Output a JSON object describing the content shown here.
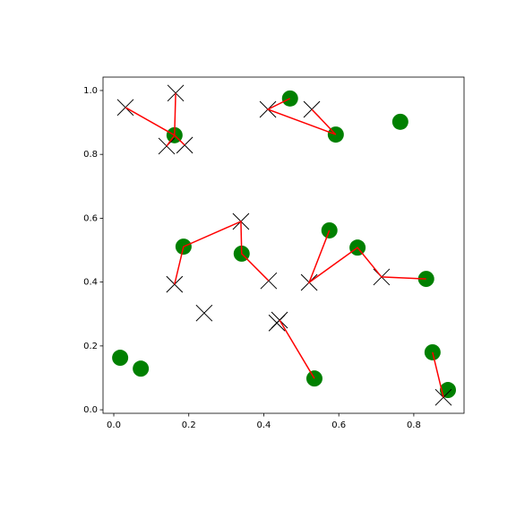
{
  "chart_data": {
    "type": "scatter",
    "xlim": [
      -0.0287,
      0.934
    ],
    "ylim": [
      -0.011,
      1.042
    ],
    "xticks": [
      {
        "value": 0,
        "label": "0.0"
      },
      {
        "value": 0.2,
        "label": "0.2"
      },
      {
        "value": 0.4,
        "label": "0.4"
      },
      {
        "value": 0.6,
        "label": "0.6"
      },
      {
        "value": 0.8,
        "label": "0.8"
      }
    ],
    "yticks": [
      {
        "value": 0,
        "label": "0.0"
      },
      {
        "value": 0.2,
        "label": "0.2"
      },
      {
        "value": 0.4,
        "label": "0.4"
      },
      {
        "value": 0.6,
        "label": "0.6"
      },
      {
        "value": 0.8,
        "label": "0.8"
      },
      {
        "value": 1,
        "label": "1.0"
      }
    ],
    "series": [
      {
        "marker": "circle",
        "color": "green",
        "x": [
          0.47,
          0.592,
          0.764,
          0.162,
          0.186,
          0.341,
          0.575,
          0.65,
          0.833,
          0.017,
          0.072,
          0.535,
          0.85,
          0.891
        ],
        "y": [
          0.975,
          0.862,
          0.902,
          0.86,
          0.511,
          0.489,
          0.562,
          0.508,
          0.41,
          0.163,
          0.129,
          0.098,
          0.18,
          0.062
        ]
      },
      {
        "marker": "x",
        "color": "black",
        "x": [
          0.031,
          0.165,
          0.141,
          0.189,
          0.411,
          0.528,
          0.339,
          0.162,
          0.413,
          0.241,
          0.442,
          0.435,
          0.521,
          0.714,
          0.879
        ],
        "y": [
          0.947,
          0.992,
          0.826,
          0.829,
          0.941,
          0.941,
          0.59,
          0.393,
          0.404,
          0.303,
          0.281,
          0.272,
          0.399,
          0.416,
          0.039
        ]
      },
      {
        "marker": "line",
        "color": "red",
        "x": [
          0.031,
          0.162,
          null,
          0.165,
          0.162,
          null,
          0.141,
          0.162,
          null,
          0.189,
          0.162,
          null,
          0.47,
          0.411,
          0.592,
          null,
          0.528,
          0.592,
          null,
          0.162,
          0.186,
          0.339,
          0.341,
          0.413,
          null,
          0.575,
          0.521,
          0.65,
          0.714,
          0.833,
          null,
          0.442,
          0.535,
          null,
          0.85,
          0.879
        ],
        "y": [
          0.947,
          0.86,
          null,
          0.992,
          0.86,
          null,
          0.826,
          0.86,
          null,
          0.829,
          0.86,
          null,
          0.975,
          0.941,
          0.862,
          null,
          0.941,
          0.862,
          null,
          0.393,
          0.511,
          0.59,
          0.489,
          0.404,
          null,
          0.562,
          0.399,
          0.508,
          0.416,
          0.41,
          null,
          0.281,
          0.098,
          null,
          0.18,
          0.039
        ]
      }
    ]
  }
}
